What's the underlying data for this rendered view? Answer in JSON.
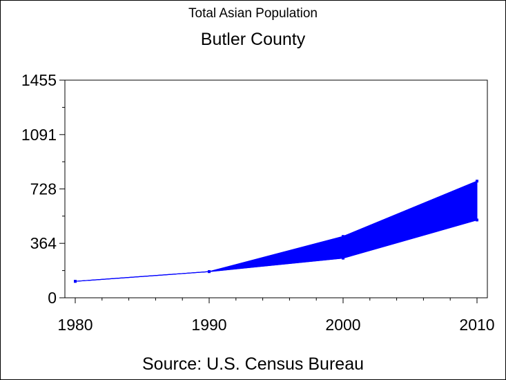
{
  "chart_data": {
    "type": "area",
    "title": "Total Asian Population",
    "subtitle": "Butler County",
    "footnote": "Source: U.S. Census Bureau",
    "xlabel": "",
    "ylabel": "",
    "x": [
      1980,
      1990,
      2000,
      2010
    ],
    "x_tick_labels": [
      "1980",
      "1990",
      "2000",
      "2010"
    ],
    "y_tick_labels": [
      "0",
      "364",
      "728",
      "1091",
      "1455"
    ],
    "y_ticks": [
      0,
      364,
      728,
      1091,
      1455
    ],
    "ylim": [
      0,
      1455
    ],
    "xlim": [
      1980,
      2010
    ],
    "series": [
      {
        "values": [
          110,
          175,
          410,
          780
        ]
      },
      {
        "values": [
          110,
          175,
          265,
          520
        ]
      }
    ],
    "fill_between_series": true,
    "color": "#0000ff",
    "grid": false
  }
}
